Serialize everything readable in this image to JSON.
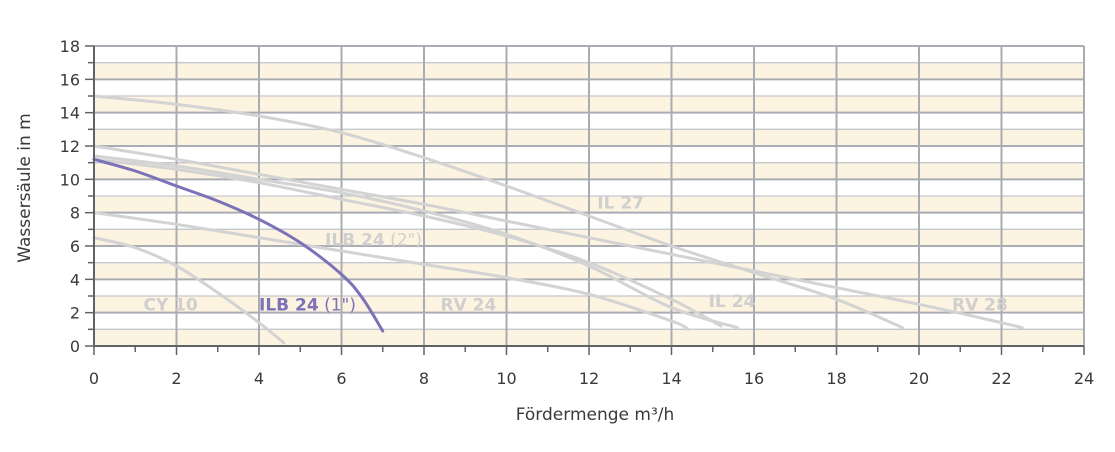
{
  "chart_data": {
    "type": "line",
    "xlabel": "Fördermenge m³/h",
    "ylabel": "Wassersäule in m",
    "xlim": [
      0,
      24
    ],
    "ylim": [
      0,
      18
    ],
    "x_ticks": [
      "0",
      "2",
      "4",
      "6",
      "8",
      "10",
      "12",
      "14",
      "16",
      "18",
      "20",
      "22",
      "24"
    ],
    "y_ticks": [
      "0",
      "2",
      "4",
      "6",
      "8",
      "10",
      "12",
      "14",
      "16",
      "18"
    ],
    "grid": true,
    "colors": {
      "band": "#fdf3e1",
      "grid_major": "#a9adb3",
      "grid_minor": "#c4c7cc",
      "highlight": "#7b72b8",
      "muted_curve": "#d3d3d3",
      "muted_label": "#cfcfcf"
    },
    "series": [
      {
        "name": "CY 10",
        "highlight": false,
        "label_parts": [
          "CY 10",
          ""
        ],
        "points": [
          [
            0,
            6.5
          ],
          [
            1,
            5.9
          ],
          [
            2,
            4.8
          ],
          [
            3,
            3.2
          ],
          [
            4,
            1.4
          ],
          [
            4.6,
            0.2
          ]
        ]
      },
      {
        "name": "ILB 24 (1\")",
        "highlight": true,
        "label_parts": [
          "ILB 24",
          " (1\")"
        ],
        "points": [
          [
            0,
            11.2
          ],
          [
            1,
            10.5
          ],
          [
            2,
            9.6
          ],
          [
            3,
            8.7
          ],
          [
            4,
            7.6
          ],
          [
            5,
            6.2
          ],
          [
            6,
            4.3
          ],
          [
            6.5,
            2.9
          ],
          [
            7,
            0.9
          ]
        ]
      },
      {
        "name": "ILB 24 (2\")",
        "highlight": false,
        "label_parts": [
          "ILB 24",
          " (2\")"
        ],
        "points": [
          [
            0,
            11.4
          ],
          [
            2,
            10.8
          ],
          [
            4,
            10.0
          ],
          [
            6,
            9.2
          ],
          [
            8,
            8.1
          ],
          [
            10,
            6.7
          ],
          [
            12,
            4.8
          ],
          [
            14,
            2.3
          ],
          [
            15.6,
            1.1
          ]
        ]
      },
      {
        "name": "RV 24",
        "highlight": false,
        "label_parts": [
          "RV 24",
          ""
        ],
        "points": [
          [
            0,
            8.0
          ],
          [
            2,
            7.3
          ],
          [
            4,
            6.5
          ],
          [
            6,
            5.7
          ],
          [
            8,
            4.9
          ],
          [
            10,
            4.1
          ],
          [
            12,
            3.1
          ],
          [
            14,
            1.5
          ],
          [
            14.4,
            1.0
          ]
        ]
      },
      {
        "name": "IL 24",
        "highlight": false,
        "label_parts": [
          "IL 24",
          ""
        ],
        "points": [
          [
            0,
            11.2
          ],
          [
            2,
            10.6
          ],
          [
            4,
            9.8
          ],
          [
            6,
            8.8
          ],
          [
            8,
            7.8
          ],
          [
            10,
            6.6
          ],
          [
            12,
            5.0
          ],
          [
            14,
            2.8
          ],
          [
            15.2,
            1.2
          ]
        ]
      },
      {
        "name": "IL 27",
        "highlight": false,
        "label_parts": [
          "IL 27",
          ""
        ],
        "points": [
          [
            0,
            15.0
          ],
          [
            2,
            14.5
          ],
          [
            4,
            13.8
          ],
          [
            6,
            12.8
          ],
          [
            8,
            11.3
          ],
          [
            10,
            9.6
          ],
          [
            12,
            7.8
          ],
          [
            14,
            6.0
          ],
          [
            16,
            4.4
          ],
          [
            18,
            2.8
          ],
          [
            19.6,
            1.1
          ]
        ]
      },
      {
        "name": "RV 28",
        "highlight": false,
        "label_parts": [
          "RV 28",
          ""
        ],
        "points": [
          [
            0,
            12.0
          ],
          [
            2,
            11.2
          ],
          [
            4,
            10.3
          ],
          [
            6,
            9.4
          ],
          [
            8,
            8.5
          ],
          [
            10,
            7.5
          ],
          [
            12,
            6.5
          ],
          [
            14,
            5.5
          ],
          [
            16,
            4.5
          ],
          [
            18,
            3.5
          ],
          [
            20,
            2.5
          ],
          [
            22,
            1.4
          ],
          [
            22.5,
            1.1
          ]
        ]
      }
    ],
    "annotations": [
      {
        "text_parts": [
          "CY 10",
          ""
        ],
        "x": 1.2,
        "y": 2.5,
        "highlight": false
      },
      {
        "text_parts": [
          "ILB 24",
          " (1\")"
        ],
        "x": 4.0,
        "y": 2.5,
        "highlight": true
      },
      {
        "text_parts": [
          "ILB 24",
          " (2\")"
        ],
        "x": 5.6,
        "y": 6.4,
        "highlight": false
      },
      {
        "text_parts": [
          "RV 24",
          ""
        ],
        "x": 8.4,
        "y": 2.5,
        "highlight": false
      },
      {
        "text_parts": [
          "IL 27",
          ""
        ],
        "x": 12.2,
        "y": 8.6,
        "highlight": false
      },
      {
        "text_parts": [
          "IL 24",
          ""
        ],
        "x": 14.9,
        "y": 2.7,
        "highlight": false
      },
      {
        "text_parts": [
          "RV 28",
          ""
        ],
        "x": 20.8,
        "y": 2.5,
        "highlight": false
      }
    ]
  }
}
